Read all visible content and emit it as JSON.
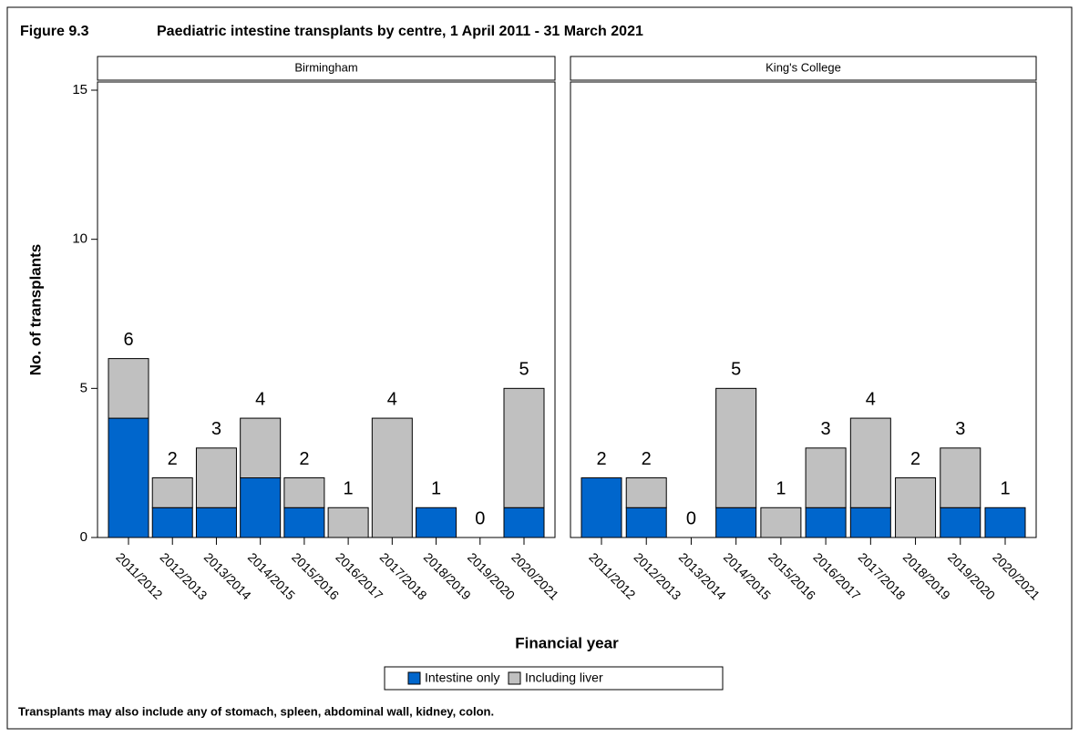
{
  "figure": {
    "label": "Figure 9.3",
    "title": "Paediatric intestine transplants by centre, 1 April 2011 - 31 March 2021",
    "ylabel": "No. of transplants",
    "xlabel": "Financial year",
    "note": "Transplants may also include any of stomach, spleen, abdominal wall, kidney, colon."
  },
  "chart_data": [
    {
      "type": "stacked-bar",
      "title": "Birmingham",
      "categories": [
        "2011/2012",
        "2012/2013",
        "2013/2014",
        "2014/2015",
        "2015/2016",
        "2016/2017",
        "2017/2018",
        "2018/2019",
        "2019/2020",
        "2020/2021"
      ],
      "series": [
        {
          "name": "Intestine only",
          "color": "#0066cc",
          "values": [
            4,
            1,
            1,
            2,
            1,
            0,
            0,
            1,
            0,
            1
          ]
        },
        {
          "name": "Including liver",
          "color": "#c0c0c0",
          "values": [
            2,
            1,
            2,
            2,
            1,
            1,
            4,
            0,
            0,
            4
          ]
        }
      ],
      "totals": [
        6,
        2,
        3,
        4,
        2,
        1,
        4,
        1,
        0,
        5
      ],
      "ylim": [
        0,
        15
      ],
      "yticks": [
        0,
        5,
        10,
        15
      ]
    },
    {
      "type": "stacked-bar",
      "title": "King's College",
      "categories": [
        "2011/2012",
        "2012/2013",
        "2013/2014",
        "2014/2015",
        "2015/2016",
        "2016/2017",
        "2017/2018",
        "2018/2019",
        "2019/2020",
        "2020/2021"
      ],
      "series": [
        {
          "name": "Intestine only",
          "color": "#0066cc",
          "values": [
            2,
            1,
            0,
            1,
            0,
            1,
            1,
            0,
            1,
            1
          ]
        },
        {
          "name": "Including liver",
          "color": "#c0c0c0",
          "values": [
            0,
            1,
            0,
            4,
            1,
            2,
            3,
            2,
            2,
            0
          ]
        }
      ],
      "totals": [
        2,
        2,
        0,
        5,
        1,
        3,
        4,
        2,
        3,
        1
      ],
      "ylim": [
        0,
        15
      ]
    }
  ]
}
